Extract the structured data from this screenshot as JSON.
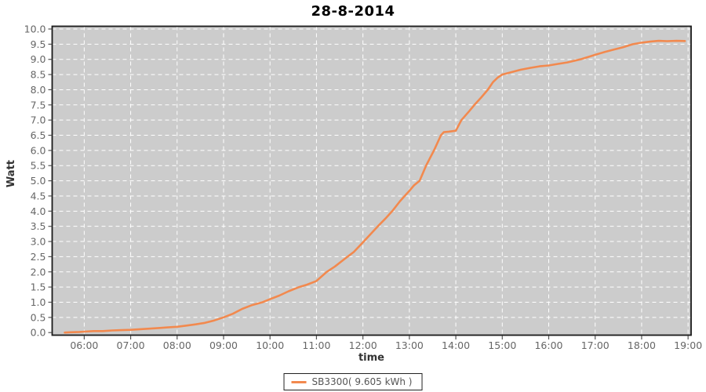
{
  "title": "28-8-2014",
  "axes": {
    "x_label": "time",
    "y_label": "Watt"
  },
  "legend": {
    "label": "SB3300( 9.605 kWh )"
  },
  "colors": {
    "background": "#ffffff",
    "plot_background": "#cccccc",
    "grid": "#ffffff",
    "line": "#f2894e",
    "tick_text": "#666666",
    "axis_label_text": "#333333",
    "border": "#1a1a1a",
    "title_text": "#000000",
    "legend_text": "#555555"
  },
  "chart_data": {
    "type": "line",
    "title": "28-8-2014",
    "xlabel": "time",
    "ylabel": "Watt",
    "xlim_hours": [
      5.31,
      19.065
    ],
    "ylim": [
      0,
      10
    ],
    "x_tick_hours": [
      6,
      7,
      8,
      9,
      10,
      11,
      12,
      13,
      14,
      15,
      16,
      17,
      18,
      19
    ],
    "x_tick_labels": [
      "06:00",
      "07:00",
      "08:00",
      "09:00",
      "10:00",
      "11:00",
      "12:00",
      "13:00",
      "14:00",
      "15:00",
      "16:00",
      "17:00",
      "18:00",
      "19:00"
    ],
    "y_tick_step": 0.5,
    "y_tick_labels": [
      "0.0",
      "0.5",
      "1.0",
      "1.5",
      "2.0",
      "2.5",
      "3.0",
      "3.5",
      "4.0",
      "4.5",
      "5.0",
      "5.5",
      "6.0",
      "6.5",
      "7.0",
      "7.5",
      "8.0",
      "8.5",
      "9.0",
      "9.5",
      "10.0"
    ],
    "grid": true,
    "grid_style": "white dashed on gray",
    "legend_position": "bottom-center",
    "series": [
      {
        "name": "SB3300( 9.605 kWh )",
        "color": "#f2894e",
        "points_time_kwh": [
          [
            5.58,
            0.0
          ],
          [
            5.7,
            0.01
          ],
          [
            5.9,
            0.02
          ],
          [
            6.0,
            0.03
          ],
          [
            6.2,
            0.05
          ],
          [
            6.4,
            0.05
          ],
          [
            6.6,
            0.07
          ],
          [
            6.8,
            0.08
          ],
          [
            7.0,
            0.09
          ],
          [
            7.2,
            0.11
          ],
          [
            7.4,
            0.13
          ],
          [
            7.6,
            0.15
          ],
          [
            7.8,
            0.17
          ],
          [
            8.0,
            0.19
          ],
          [
            8.2,
            0.23
          ],
          [
            8.4,
            0.27
          ],
          [
            8.6,
            0.32
          ],
          [
            8.8,
            0.4
          ],
          [
            9.0,
            0.5
          ],
          [
            9.2,
            0.62
          ],
          [
            9.4,
            0.78
          ],
          [
            9.6,
            0.9
          ],
          [
            9.84,
            1.0
          ],
          [
            10.0,
            1.1
          ],
          [
            10.2,
            1.22
          ],
          [
            10.4,
            1.36
          ],
          [
            10.63,
            1.5
          ],
          [
            10.8,
            1.58
          ],
          [
            11.0,
            1.7
          ],
          [
            11.22,
            2.0
          ],
          [
            11.4,
            2.18
          ],
          [
            11.6,
            2.42
          ],
          [
            11.8,
            2.65
          ],
          [
            12.0,
            2.97
          ],
          [
            12.2,
            3.3
          ],
          [
            12.32,
            3.5
          ],
          [
            12.5,
            3.78
          ],
          [
            12.63,
            4.0
          ],
          [
            12.8,
            4.33
          ],
          [
            13.0,
            4.67
          ],
          [
            13.1,
            4.85
          ],
          [
            13.22,
            5.0
          ],
          [
            13.36,
            5.5
          ],
          [
            13.53,
            6.0
          ],
          [
            13.68,
            6.5
          ],
          [
            13.74,
            6.6
          ],
          [
            13.85,
            6.62
          ],
          [
            14.0,
            6.65
          ],
          [
            14.12,
            7.0
          ],
          [
            14.28,
            7.28
          ],
          [
            14.4,
            7.5
          ],
          [
            14.55,
            7.75
          ],
          [
            14.69,
            8.0
          ],
          [
            14.8,
            8.25
          ],
          [
            14.9,
            8.4
          ],
          [
            15.0,
            8.5
          ],
          [
            15.2,
            8.58
          ],
          [
            15.4,
            8.66
          ],
          [
            15.6,
            8.72
          ],
          [
            15.8,
            8.77
          ],
          [
            16.0,
            8.8
          ],
          [
            16.2,
            8.85
          ],
          [
            16.4,
            8.9
          ],
          [
            16.68,
            9.0
          ],
          [
            16.9,
            9.1
          ],
          [
            17.0,
            9.15
          ],
          [
            17.2,
            9.24
          ],
          [
            17.4,
            9.32
          ],
          [
            17.6,
            9.4
          ],
          [
            17.81,
            9.5
          ],
          [
            18.0,
            9.55
          ],
          [
            18.2,
            9.59
          ],
          [
            18.37,
            9.61
          ],
          [
            18.55,
            9.6
          ],
          [
            18.75,
            9.61
          ],
          [
            18.93,
            9.605
          ]
        ]
      }
    ]
  }
}
